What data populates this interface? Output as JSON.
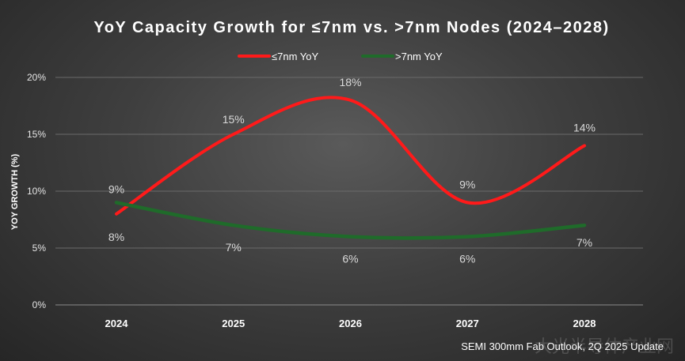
{
  "chart_data": {
    "type": "line",
    "title": "YoY Capacity Growth for ≤7nm vs. >7nm Nodes (2024–2028)",
    "xlabel": "",
    "ylabel": "YOY GROWTH (%)",
    "categories": [
      "2024",
      "2025",
      "2026",
      "2027",
      "2028"
    ],
    "ylim": [
      0,
      20
    ],
    "yticks": [
      "0%",
      "5%",
      "10%",
      "15%",
      "20%"
    ],
    "grid": true,
    "legend_position": "top-center",
    "series": [
      {
        "name": "≤7nm YoY",
        "color": "#ff1a1a",
        "values": [
          8,
          15,
          18,
          9,
          14
        ],
        "labels": [
          "8%",
          "15%",
          "18%",
          "9%",
          "14%"
        ]
      },
      {
        "name": ">7nm YoY",
        "color": "#1f6b2a",
        "values": [
          9,
          7,
          6,
          6,
          7
        ],
        "labels": [
          "9%",
          "7%",
          "6%",
          "6%",
          "7%"
        ]
      }
    ],
    "source": "SEMI 300mm Fab Outlook, 2Q 2025 Update",
    "watermark": "大光半导体产业网"
  }
}
